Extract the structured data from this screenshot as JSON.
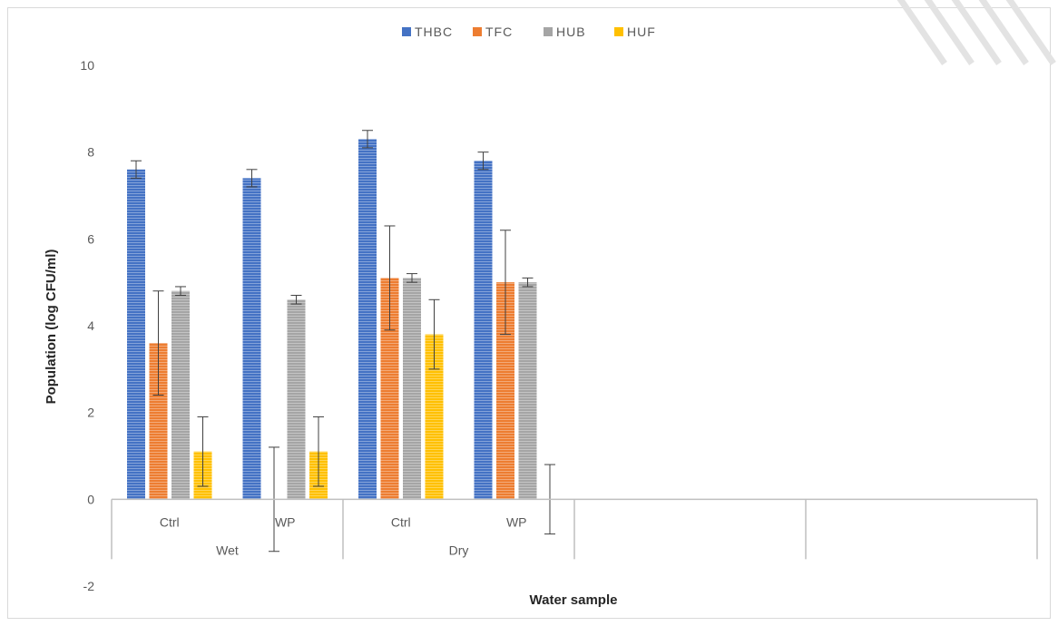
{
  "chart_data": {
    "type": "bar",
    "xlabel": "Water sample",
    "ylabel": "Population (log CFU/ml)",
    "ylim": [
      -2,
      10
    ],
    "yticks": [
      -2,
      0,
      2,
      4,
      6,
      8,
      10
    ],
    "legend_position": "top-center",
    "grid": false,
    "groups": [
      {
        "label": "Wet",
        "categories": [
          "Ctrl",
          "WP"
        ]
      },
      {
        "label": "Dry",
        "categories": [
          "Ctrl",
          "WP"
        ]
      },
      {
        "label": "",
        "categories": []
      },
      {
        "label": "",
        "categories": []
      }
    ],
    "series": [
      {
        "name": "THBC",
        "color": "#4472c4",
        "values": [
          7.6,
          7.4,
          8.3,
          7.8
        ],
        "errors": [
          0.2,
          0.2,
          0.2,
          0.2
        ]
      },
      {
        "name": "TFC",
        "color": "#ed7d31",
        "values": [
          3.6,
          0,
          5.1,
          5.0
        ],
        "errors": [
          1.2,
          1.2,
          1.2,
          1.2
        ]
      },
      {
        "name": "HUB",
        "color": "#a5a5a5",
        "values": [
          4.8,
          4.6,
          5.1,
          5.0
        ],
        "errors": [
          0.1,
          0.1,
          0.1,
          0.1
        ]
      },
      {
        "name": "HUF",
        "color": "#ffc000",
        "values": [
          1.1,
          1.1,
          3.8,
          0
        ],
        "errors": [
          0.8,
          0.8,
          0.8,
          0.8
        ]
      }
    ]
  }
}
